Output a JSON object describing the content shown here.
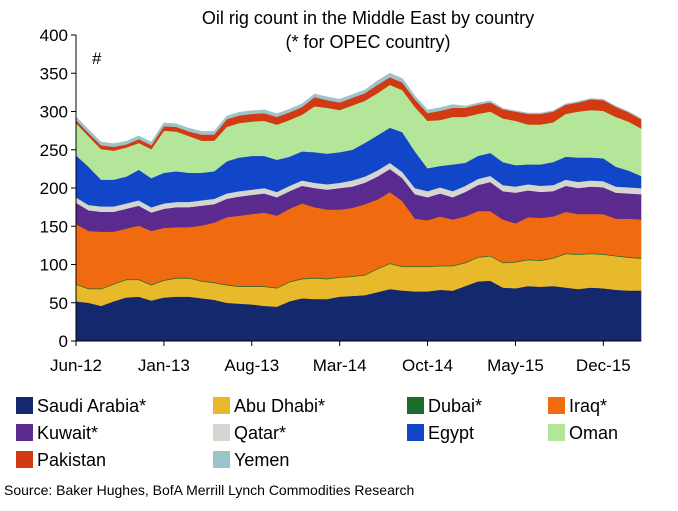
{
  "chart_data": {
    "type": "area",
    "stacked": true,
    "title": "Oil rig count in the Middle East by country",
    "subtitle": "(* for OPEC country)",
    "unit_label": "#",
    "xlabel": "",
    "ylabel": "",
    "ylim": [
      0,
      400
    ],
    "yticks": [
      0,
      50,
      100,
      150,
      200,
      250,
      300,
      350,
      400
    ],
    "x_tick_labels": [
      "Jun-12",
      "Jan-13",
      "Aug-13",
      "Mar-14",
      "Oct-14",
      "May-15",
      "Dec-15"
    ],
    "x": [
      "2012-06",
      "2012-07",
      "2012-08",
      "2012-09",
      "2012-10",
      "2012-11",
      "2012-12",
      "2013-01",
      "2013-02",
      "2013-03",
      "2013-04",
      "2013-05",
      "2013-06",
      "2013-07",
      "2013-08",
      "2013-09",
      "2013-10",
      "2013-11",
      "2013-12",
      "2014-01",
      "2014-02",
      "2014-03",
      "2014-04",
      "2014-05",
      "2014-06",
      "2014-07",
      "2014-08",
      "2014-09",
      "2014-10",
      "2014-11",
      "2014-12",
      "2015-01",
      "2015-02",
      "2015-03",
      "2015-04",
      "2015-05",
      "2015-06",
      "2015-07",
      "2015-08",
      "2015-09",
      "2015-10",
      "2015-11",
      "2015-12",
      "2016-01",
      "2016-02",
      "2016-03"
    ],
    "grid": false,
    "legend_position": "bottom",
    "series": [
      {
        "name": "Saudi Arabia*",
        "color": "#14286e",
        "values": [
          52,
          50,
          46,
          52,
          57,
          58,
          53,
          57,
          58,
          58,
          56,
          54,
          50,
          49,
          48,
          46,
          45,
          52,
          56,
          55,
          55,
          58,
          59,
          60,
          64,
          68,
          66,
          65,
          65,
          67,
          66,
          72,
          78,
          79,
          70,
          69,
          72,
          71,
          72,
          70,
          68,
          70,
          69,
          67,
          66,
          66
        ]
      },
      {
        "name": "Abu Dhabi*",
        "color": "#e8b92a",
        "values": [
          22,
          18,
          22,
          22,
          23,
          22,
          20,
          22,
          24,
          24,
          22,
          22,
          23,
          22,
          23,
          25,
          24,
          25,
          25,
          27,
          26,
          25,
          25,
          26,
          30,
          33,
          31,
          32,
          32,
          31,
          32,
          30,
          31,
          32,
          32,
          34,
          34,
          34,
          36,
          44,
          45,
          44,
          44,
          44,
          43,
          42
        ]
      },
      {
        "name": "Dubai*",
        "color": "#1d6b2b",
        "values": [
          1,
          1,
          1,
          1,
          1,
          1,
          1,
          1,
          1,
          1,
          1,
          1,
          1,
          1,
          1,
          1,
          1,
          1,
          1,
          1,
          1,
          1,
          1,
          1,
          1,
          1,
          1,
          1,
          1,
          1,
          1,
          1,
          1,
          1,
          1,
          1,
          1,
          1,
          1,
          1,
          1,
          1,
          1,
          1,
          1,
          1
        ]
      },
      {
        "name": "Iraq*",
        "color": "#f06a10",
        "values": [
          78,
          75,
          74,
          68,
          66,
          70,
          70,
          68,
          66,
          66,
          72,
          78,
          88,
          92,
          94,
          96,
          94,
          95,
          98,
          92,
          90,
          88,
          89,
          92,
          90,
          93,
          85,
          62,
          60,
          64,
          60,
          60,
          60,
          58,
          56,
          50,
          55,
          55,
          54,
          54,
          52,
          51,
          52,
          48,
          50,
          50
        ]
      },
      {
        "name": "Kuwait*",
        "color": "#5a2a8e",
        "values": [
          28,
          27,
          26,
          26,
          26,
          26,
          24,
          25,
          26,
          26,
          26,
          24,
          24,
          25,
          25,
          25,
          24,
          23,
          23,
          25,
          26,
          28,
          28,
          28,
          30,
          30,
          30,
          32,
          30,
          30,
          29,
          32,
          34,
          38,
          37,
          40,
          35,
          34,
          33,
          34,
          34,
          36,
          35,
          34,
          33,
          33
        ]
      },
      {
        "name": "Qatar*",
        "color": "#d6d6d0",
        "values": [
          7,
          7,
          7,
          7,
          7,
          7,
          7,
          7,
          7,
          7,
          7,
          7,
          7,
          7,
          7,
          7,
          7,
          7,
          7,
          7,
          7,
          7,
          8,
          8,
          8,
          8,
          8,
          8,
          8,
          8,
          8,
          8,
          8,
          8,
          8,
          8,
          8,
          8,
          8,
          8,
          8,
          8,
          8,
          8,
          8,
          8
        ]
      },
      {
        "name": "Egypt",
        "color": "#1146c8",
        "values": [
          55,
          50,
          35,
          35,
          35,
          40,
          38,
          40,
          40,
          38,
          36,
          36,
          42,
          44,
          44,
          42,
          42,
          38,
          38,
          40,
          40,
          40,
          40,
          44,
          46,
          46,
          52,
          48,
          30,
          28,
          35,
          30,
          30,
          30,
          30,
          28,
          26,
          28,
          30,
          30,
          32,
          30,
          30,
          26,
          22,
          16
        ]
      },
      {
        "name": "Oman",
        "color": "#b4e69a",
        "values": [
          42,
          40,
          40,
          38,
          38,
          35,
          38,
          55,
          52,
          48,
          42,
          40,
          45,
          45,
          45,
          46,
          46,
          48,
          48,
          60,
          60,
          55,
          58,
          55,
          55,
          56,
          55,
          58,
          62,
          60,
          62,
          60,
          55,
          54,
          57,
          58,
          52,
          52,
          52,
          56,
          60,
          62,
          62,
          65,
          64,
          62
        ]
      },
      {
        "name": "Pakistan",
        "color": "#d13a12",
        "values": [
          4,
          4,
          5,
          5,
          4,
          5,
          5,
          6,
          6,
          6,
          8,
          8,
          10,
          10,
          10,
          10,
          10,
          10,
          10,
          12,
          10,
          10,
          10,
          10,
          11,
          10,
          10,
          10,
          10,
          12,
          12,
          12,
          12,
          12,
          12,
          12,
          14,
          14,
          14,
          12,
          12,
          14,
          14,
          13,
          12,
          12
        ]
      },
      {
        "name": "Yemen",
        "color": "#9cc4cc",
        "values": [
          4,
          4,
          4,
          4,
          4,
          4,
          4,
          4,
          4,
          4,
          4,
          4,
          4,
          4,
          4,
          4,
          4,
          4,
          4,
          4,
          4,
          4,
          4,
          4,
          5,
          5,
          5,
          4,
          4,
          4,
          4,
          2,
          2,
          2,
          1,
          1,
          1,
          1,
          1,
          1,
          1,
          1,
          1,
          1,
          1,
          1
        ]
      }
    ]
  },
  "source": "Source: Baker Hughes, BofA Merrill Lynch Commodities Research"
}
